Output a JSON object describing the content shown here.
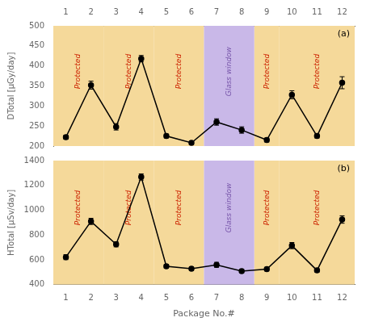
{
  "chart_data": [
    {
      "type": "line",
      "y_label": "DTotal [μGy/day]",
      "panel_label": "(a)",
      "x": [
        1,
        2,
        3,
        4,
        5,
        6,
        7,
        8,
        9,
        10,
        11,
        12
      ],
      "values": [
        222,
        352,
        248,
        418,
        225,
        208,
        260,
        240,
        215,
        328,
        225,
        358
      ],
      "errors": [
        5,
        10,
        8,
        8,
        5,
        5,
        8,
        8,
        5,
        10,
        5,
        15
      ],
      "color": "#000000",
      "marker": "circle",
      "line_style": "solid",
      "xlim": [
        0.5,
        12.5
      ],
      "xticks": [
        1,
        2,
        3,
        4,
        5,
        6,
        7,
        8,
        9,
        10,
        11,
        12
      ],
      "ylim": [
        200,
        500
      ],
      "yticks": [
        200,
        250,
        300,
        350,
        400,
        450,
        500
      ],
      "grid": false,
      "bands": [
        {
          "from": 0.5,
          "to": 2.5,
          "color": "#f5d99a",
          "label": "Protected",
          "label_color": "#cc2200"
        },
        {
          "from": 2.5,
          "to": 4.5,
          "color": "#f5d99a",
          "label": "Protected",
          "label_color": "#cc2200"
        },
        {
          "from": 4.5,
          "to": 6.5,
          "color": "#f5d99a",
          "label": "Protected",
          "label_color": "#cc2200"
        },
        {
          "from": 8.5,
          "to": 9.5,
          "color": "#f5d99a",
          "label": "Protected",
          "label_color": "#cc2200"
        },
        {
          "from": 9.5,
          "to": 12.5,
          "color": "#f5d99a",
          "label": "Protected",
          "label_color": "#cc2200"
        },
        {
          "from": 6.5,
          "to": 8.5,
          "color": "#c9b8e8",
          "label": "Glass window",
          "label_color": "#7755aa"
        }
      ]
    },
    {
      "type": "line",
      "y_label": "HTotal [μSv/day]",
      "x_label": "Package No.#",
      "panel_label": "(b)",
      "x": [
        1,
        2,
        3,
        4,
        5,
        6,
        7,
        8,
        9,
        10,
        11,
        12
      ],
      "values": [
        622,
        910,
        725,
        1268,
        548,
        528,
        560,
        510,
        525,
        715,
        515,
        925
      ],
      "errors": [
        20,
        25,
        20,
        25,
        15,
        15,
        20,
        15,
        15,
        25,
        15,
        30
      ],
      "color": "#000000",
      "marker": "circle",
      "line_style": "solid",
      "xlim": [
        0.5,
        12.5
      ],
      "xticks": [
        1,
        2,
        3,
        4,
        5,
        6,
        7,
        8,
        9,
        10,
        11,
        12
      ],
      "ylim": [
        400,
        1400
      ],
      "yticks": [
        400,
        600,
        800,
        1000,
        1200,
        1400
      ],
      "grid": false,
      "bands": [
        {
          "from": 0.5,
          "to": 2.5,
          "color": "#f5d99a",
          "label": "Protected",
          "label_color": "#cc2200"
        },
        {
          "from": 2.5,
          "to": 4.5,
          "color": "#f5d99a",
          "label": "Protected",
          "label_color": "#cc2200"
        },
        {
          "from": 4.5,
          "to": 6.5,
          "color": "#f5d99a",
          "label": "Protected",
          "label_color": "#cc2200"
        },
        {
          "from": 8.5,
          "to": 9.5,
          "color": "#f5d99a",
          "label": "Protected",
          "label_color": "#cc2200"
        },
        {
          "from": 9.5,
          "to": 12.5,
          "color": "#f5d99a",
          "label": "Protected",
          "label_color": "#cc2200"
        },
        {
          "from": 6.5,
          "to": 8.5,
          "color": "#c9b8e8",
          "label": "Glass window",
          "label_color": "#7755aa"
        }
      ]
    }
  ]
}
